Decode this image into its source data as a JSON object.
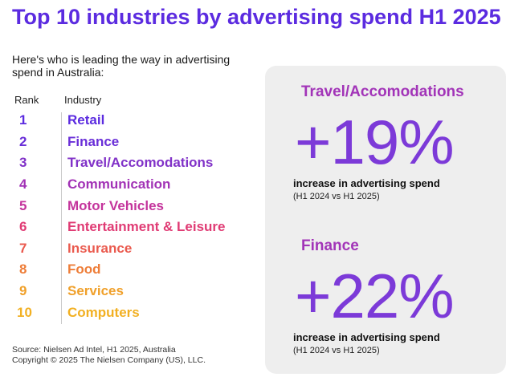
{
  "title": "Top 10 industries by advertising spend H1 2025",
  "intro": "Here's who is leading the way in advertising spend in Australia:",
  "table": {
    "rank_header": "Rank",
    "industry_header": "Industry",
    "rows": [
      {
        "rank": "1",
        "industry": "Retail",
        "color": "#5b2be0"
      },
      {
        "rank": "2",
        "industry": "Finance",
        "color": "#6a2fd8"
      },
      {
        "rank": "3",
        "industry": "Travel/Accomodations",
        "color": "#8132c8"
      },
      {
        "rank": "4",
        "industry": "Communication",
        "color": "#a233b6"
      },
      {
        "rank": "5",
        "industry": "Motor Vehicles",
        "color": "#c4349c"
      },
      {
        "rank": "6",
        "industry": "Entertainment & Leisure",
        "color": "#e03b74"
      },
      {
        "rank": "7",
        "industry": "Insurance",
        "color": "#ea5a4e"
      },
      {
        "rank": "8",
        "industry": "Food",
        "color": "#ee7d38"
      },
      {
        "rank": "9",
        "industry": "Services",
        "color": "#f0a02a"
      },
      {
        "rank": "10",
        "industry": "Computers",
        "color": "#f2b022"
      }
    ]
  },
  "footer": {
    "source": "Source: Nielsen Ad Intel, H1 2025, Australia",
    "copyright": "Copyright © 2025 The Nielsen Company (US), LLC."
  },
  "stats": [
    {
      "label": "Travel/Accomodations",
      "value": "+19%",
      "description": "increase in advertising spend",
      "period": "(H1 2024 vs H1 2025)"
    },
    {
      "label": "Finance",
      "value": "+22%",
      "description": "increase in advertising spend",
      "period": "(H1 2024 vs H1 2025)"
    }
  ]
}
